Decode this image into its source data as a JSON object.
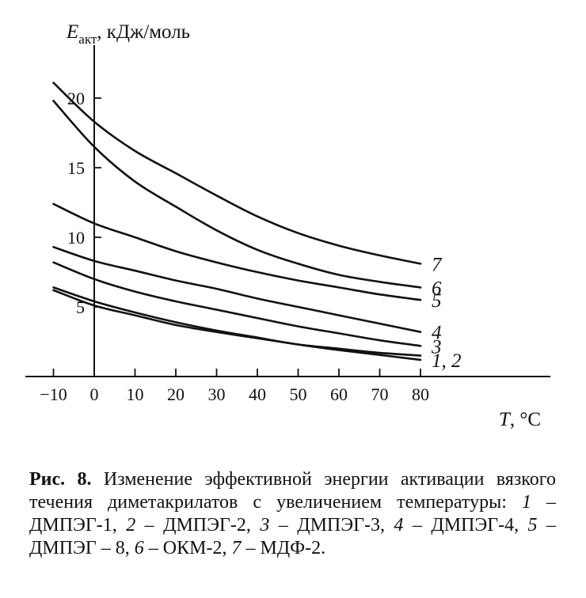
{
  "chart_data": {
    "type": "line",
    "ylabel_main": "E",
    "ylabel_sub": "акт",
    "ylabel_unit": ", кДж/моль",
    "xlabel_var": "T",
    "xlabel_unit": ", °C",
    "xlim": [
      -10,
      80
    ],
    "ylim": [
      0,
      20
    ],
    "x_ticks": [
      -10,
      0,
      10,
      20,
      30,
      40,
      50,
      60,
      70,
      80
    ],
    "y_ticks": [
      5,
      10,
      15,
      20
    ],
    "series": [
      {
        "name": "1, 2",
        "x": [
          -10,
          0,
          10,
          20,
          30,
          40,
          50,
          60,
          70,
          80
        ],
        "y": [
          6.2,
          5.1,
          4.4,
          3.7,
          3.2,
          2.75,
          2.3,
          1.9,
          1.55,
          1.2
        ]
      },
      {
        "name": "",
        "x": [
          -10,
          0,
          10,
          20,
          30,
          40,
          50,
          60,
          70,
          80
        ],
        "y": [
          6.4,
          5.4,
          4.6,
          3.9,
          3.3,
          2.8,
          2.3,
          2.0,
          1.7,
          1.5
        ]
      },
      {
        "name": "3",
        "x": [
          -10,
          0,
          10,
          20,
          30,
          40,
          50,
          60,
          70,
          80
        ],
        "y": [
          8.2,
          7.0,
          6.1,
          5.4,
          4.8,
          4.2,
          3.6,
          3.1,
          2.6,
          2.2
        ]
      },
      {
        "name": "4",
        "x": [
          -10,
          0,
          10,
          20,
          30,
          40,
          50,
          60,
          70,
          80
        ],
        "y": [
          9.3,
          8.3,
          7.6,
          6.9,
          6.3,
          5.6,
          5.0,
          4.4,
          3.8,
          3.2
        ]
      },
      {
        "name": "5",
        "x": [
          -10,
          0,
          10,
          20,
          30,
          40,
          50,
          60,
          70,
          80
        ],
        "y": [
          12.4,
          11.0,
          10.0,
          9.0,
          8.2,
          7.5,
          6.9,
          6.4,
          5.9,
          5.5
        ]
      },
      {
        "name": "6",
        "x": [
          -10,
          0,
          10,
          20,
          30,
          40,
          50,
          60,
          70,
          80
        ],
        "y": [
          19.8,
          16.5,
          14.0,
          12.2,
          10.5,
          9.1,
          8.1,
          7.3,
          6.8,
          6.4
        ]
      },
      {
        "name": "7",
        "x": [
          -10,
          0,
          10,
          20,
          30,
          40,
          50,
          60,
          70,
          80
        ],
        "y": [
          21.1,
          18.3,
          16.2,
          14.6,
          13.0,
          11.5,
          10.3,
          9.4,
          8.7,
          8.1
        ]
      }
    ]
  },
  "caption": {
    "fig_label": "Рис. 8.",
    "text_intro": " Изменение эффективной энергии активации вязкого течения диметакрилатов с увеличением температуры: ",
    "items": [
      {
        "num": "1",
        "name": " – ДМПЭГ-1, "
      },
      {
        "num": "2",
        "name": " – ДМПЭГ-2, "
      },
      {
        "num": "3",
        "name": " – ДМПЭГ-3, "
      },
      {
        "num": "4",
        "name": " – ДМПЭГ-4, "
      },
      {
        "num": "5",
        "name": " – ДМПЭГ – 8, "
      },
      {
        "num": "6",
        "name": " – ОКМ-2, "
      },
      {
        "num": "7",
        "name": " – МДФ-2."
      }
    ]
  }
}
